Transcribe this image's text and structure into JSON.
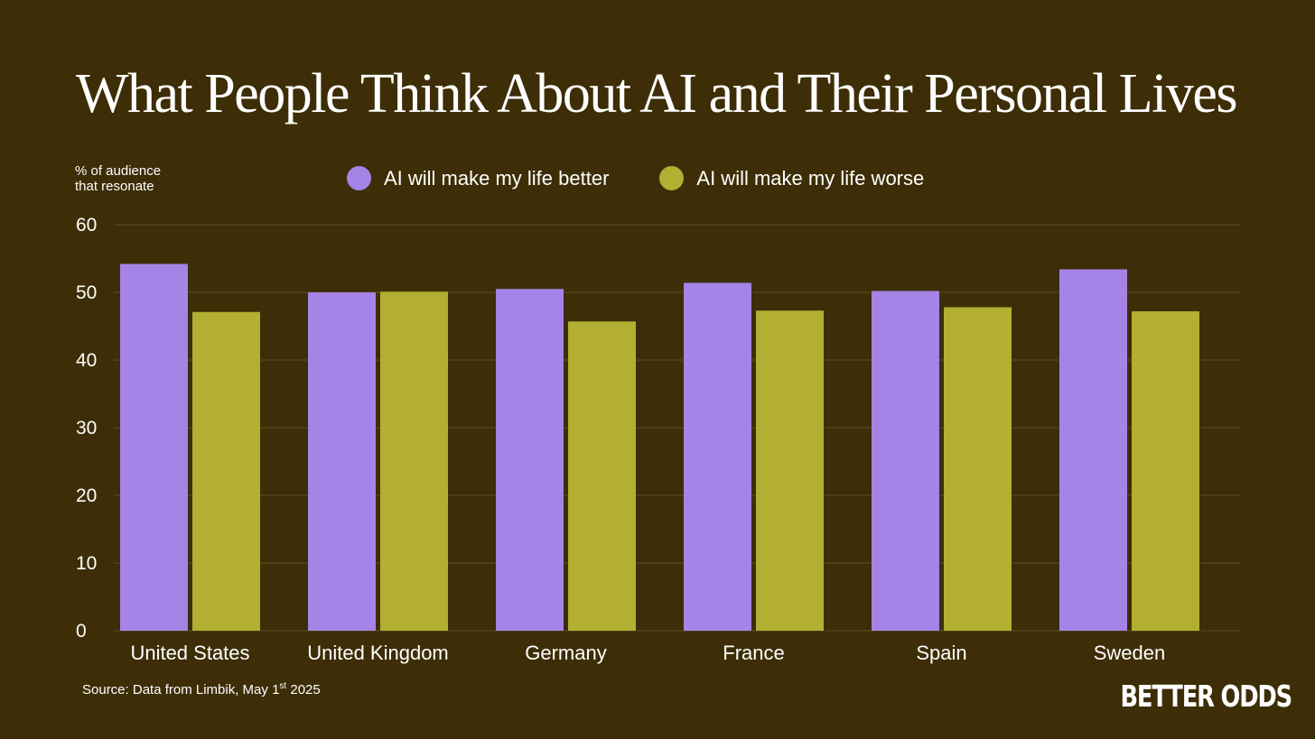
{
  "colors": {
    "background": "#3d2e07",
    "better": "#a484e6",
    "worse": "#b2af33",
    "grid": "#5c4d25",
    "text": "#ffffff"
  },
  "chart_data": {
    "type": "bar",
    "title": "What People Think About AI and Their Personal Lives",
    "ylabel_line1": "% of audience",
    "ylabel_line2": "that resonate",
    "xlabel": "",
    "categories": [
      "United States",
      "United Kingdom",
      "Germany",
      "France",
      "Spain",
      "Sweden"
    ],
    "series": [
      {
        "name": "AI will make my life better",
        "values": [
          54.2,
          50.0,
          50.5,
          51.4,
          50.2,
          53.4
        ]
      },
      {
        "name": "AI will make my life worse",
        "values": [
          47.1,
          50.1,
          45.7,
          47.3,
          47.8,
          47.2
        ]
      }
    ],
    "ylim": [
      0,
      60
    ],
    "yticks": [
      0,
      10,
      20,
      30,
      40,
      50,
      60
    ],
    "grid": true,
    "legend_position": "top"
  },
  "source": {
    "prefix": "Source: Data from Limbik, May 1",
    "ordinal": "st",
    "year": " 2025"
  },
  "brand": {
    "logo_text": "BETTER ODDS"
  }
}
